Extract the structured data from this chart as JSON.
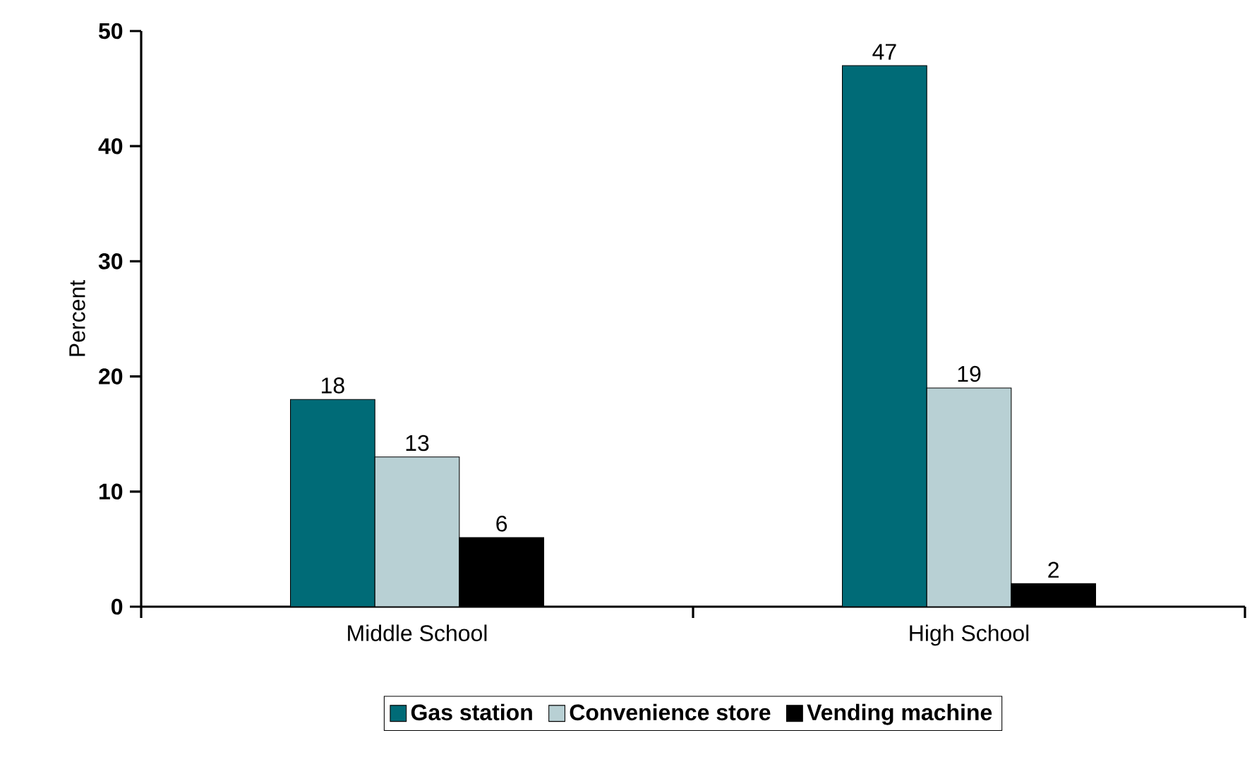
{
  "chart_data": {
    "type": "bar",
    "ylabel": "Percent",
    "categories": [
      "Middle School",
      "High School"
    ],
    "series": [
      {
        "name": "Gas station",
        "color": "#006b77",
        "values": [
          18,
          47
        ]
      },
      {
        "name": "Convenience store",
        "color": "#b8d0d4",
        "values": [
          13,
          19
        ]
      },
      {
        "name": "Vending machine",
        "color": "#000000",
        "values": [
          6,
          2
        ]
      }
    ],
    "ylim": [
      0,
      50
    ],
    "yticks": [
      0,
      10,
      20,
      30,
      40,
      50
    ],
    "data_labels": true,
    "legend": "bottom"
  }
}
